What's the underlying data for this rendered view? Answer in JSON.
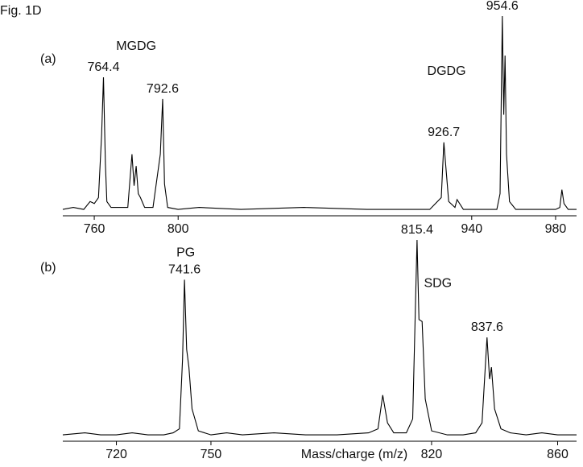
{
  "title": "Fig. 1D",
  "chart_data": [
    {
      "type": "line",
      "panel_label": "(a)",
      "color": "#000000",
      "xlim": [
        745,
        990
      ],
      "ylim": [
        0,
        100
      ],
      "xticks": [
        760,
        800,
        940,
        980
      ],
      "x": [
        745,
        750,
        755,
        758,
        760,
        762,
        763.5,
        764.4,
        765.3,
        766,
        768,
        772,
        776,
        778,
        779,
        780,
        781,
        782,
        784,
        788,
        791.5,
        792.6,
        793.5,
        795,
        800,
        810,
        830,
        860,
        890,
        920,
        925.5,
        926.7,
        927.8,
        929,
        932,
        933,
        936,
        945,
        952,
        953.5,
        954.6,
        955.3,
        955.9,
        956.6,
        958,
        961,
        970,
        980,
        982,
        983,
        984,
        986,
        990
      ],
      "values": [
        2,
        3,
        2,
        6,
        5,
        8,
        40,
        69,
        25,
        6,
        3,
        3,
        3,
        30,
        14,
        24,
        10,
        8,
        3,
        3,
        30,
        58,
        15,
        3,
        2,
        3,
        2,
        3,
        2,
        2,
        8,
        36,
        22,
        6,
        3,
        7,
        2,
        2,
        2,
        10,
        100,
        50,
        80,
        30,
        6,
        2,
        2,
        2,
        3,
        12,
        5,
        2,
        2
      ],
      "peaks": {
        "x": [
          764.4,
          792.6,
          926.7,
          954.6
        ],
        "values": [
          69,
          58,
          36,
          100
        ]
      },
      "annotations": [
        {
          "text": "MGDG",
          "x": 780,
          "y": 84.5
        },
        {
          "text": "DGDG",
          "x": 928,
          "y": 72
        }
      ]
    },
    {
      "type": "line",
      "panel_label": "(b)",
      "color": "#000000",
      "x_label": "Mass/charge (m/z)",
      "xlim": [
        703,
        866
      ],
      "ylim": [
        0,
        100
      ],
      "xticks": [
        720,
        750,
        820,
        860
      ],
      "x": [
        703,
        710,
        715,
        720,
        725,
        730,
        735,
        738,
        740,
        741,
        741.6,
        742.3,
        743,
        744,
        746,
        750,
        755,
        760,
        770,
        780,
        790,
        800,
        803,
        804.5,
        806,
        808,
        812,
        814,
        815.4,
        816,
        817,
        818,
        820,
        825,
        830,
        834,
        836,
        837.6,
        838.4,
        839,
        840,
        842,
        845,
        850,
        855,
        860,
        866
      ],
      "values": [
        2,
        3,
        2,
        2,
        3,
        2,
        2,
        3,
        5,
        40,
        80,
        45,
        36,
        15,
        4,
        2,
        3,
        2,
        3,
        2,
        2,
        3,
        5,
        22,
        8,
        3,
        3,
        10,
        100,
        60,
        59,
        20,
        4,
        2,
        2,
        3,
        8,
        51,
        30,
        36,
        15,
        5,
        3,
        2,
        3,
        2,
        2
      ],
      "peaks": {
        "x": [
          741.6,
          815.4,
          837.6
        ],
        "values": [
          80,
          100,
          51
        ]
      },
      "annotations": [
        {
          "text": "PG",
          "x": 742,
          "y": 93.5
        },
        {
          "text": "SDG",
          "x": 822,
          "y": 78
        }
      ]
    }
  ]
}
